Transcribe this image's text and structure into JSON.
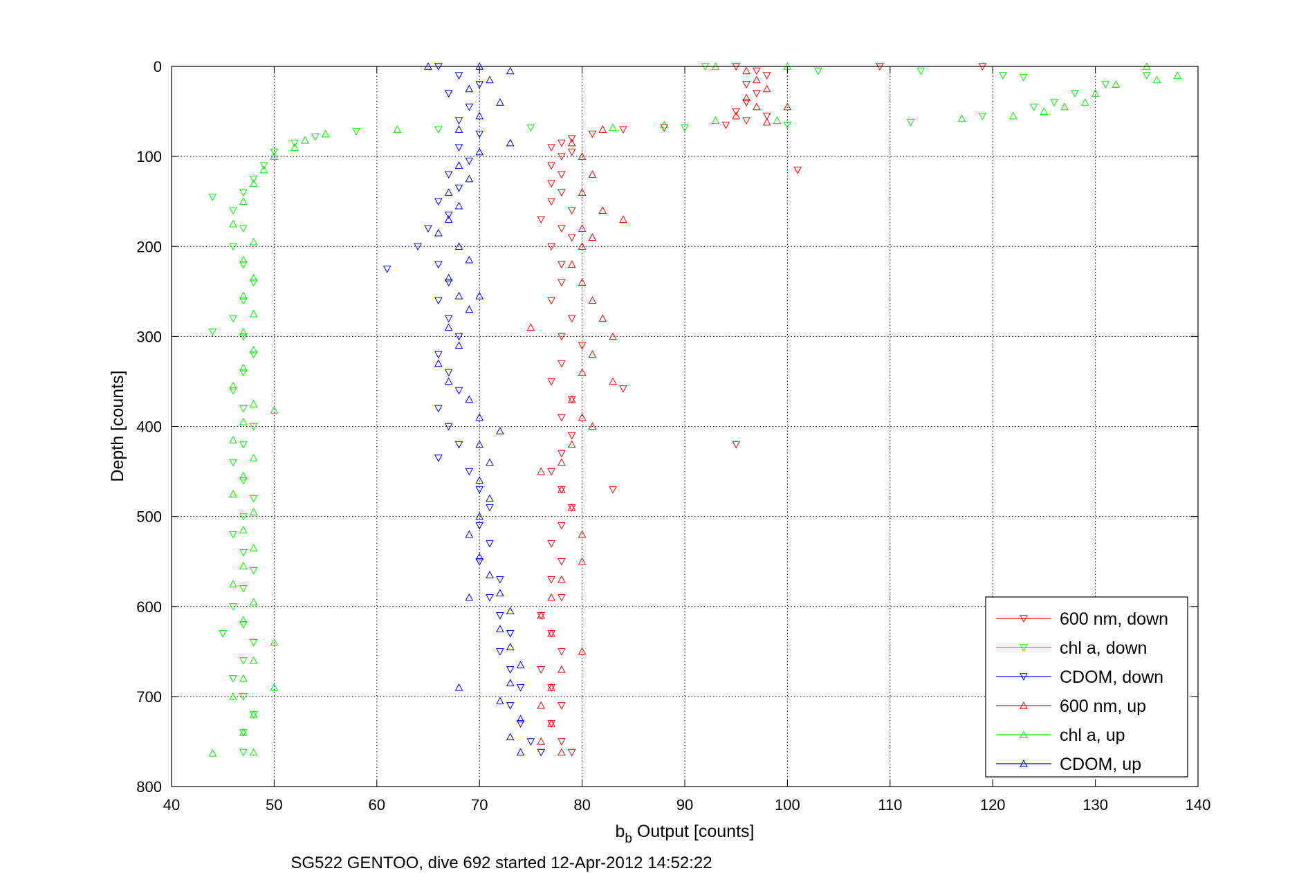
{
  "chart_data": {
    "type": "scatter",
    "xlabel_main": "b",
    "xlabel_sub": "b",
    "xlabel_rest": " Output [counts]",
    "ylabel": "Depth [counts]",
    "caption": "SG522 GENTOO, dive 692 started 12-Apr-2012 14:52:22",
    "xlim": [
      40,
      140
    ],
    "ylim": [
      0,
      800
    ],
    "y_reversed": true,
    "grid": true,
    "legend_position": "bottom-right",
    "xticks": [
      "40",
      "50",
      "60",
      "70",
      "80",
      "90",
      "100",
      "110",
      "120",
      "130",
      "140"
    ],
    "yticks": [
      "0",
      "100",
      "200",
      "300",
      "400",
      "500",
      "600",
      "700",
      "800"
    ],
    "series": [
      {
        "name": "600 nm, down",
        "color": "#ff0000",
        "marker": "triangle-down",
        "points": [
          [
            95,
            0
          ],
          [
            97,
            5
          ],
          [
            98,
            10
          ],
          [
            96,
            20
          ],
          [
            97,
            30
          ],
          [
            96,
            40
          ],
          [
            95,
            50
          ],
          [
            98,
            55
          ],
          [
            96,
            60
          ],
          [
            94,
            65
          ],
          [
            88,
            68
          ],
          [
            84,
            70
          ],
          [
            81,
            75
          ],
          [
            79,
            80
          ],
          [
            78,
            85
          ],
          [
            77,
            90
          ],
          [
            79,
            95
          ],
          [
            78,
            100
          ],
          [
            77,
            110
          ],
          [
            78,
            120
          ],
          [
            77,
            130
          ],
          [
            78,
            140
          ],
          [
            77,
            150
          ],
          [
            79,
            160
          ],
          [
            76,
            170
          ],
          [
            78,
            180
          ],
          [
            79,
            190
          ],
          [
            77,
            200
          ],
          [
            78,
            220
          ],
          [
            78,
            240
          ],
          [
            77,
            260
          ],
          [
            79,
            280
          ],
          [
            78,
            300
          ],
          [
            80,
            310
          ],
          [
            78,
            330
          ],
          [
            77,
            350
          ],
          [
            79,
            370
          ],
          [
            78,
            390
          ],
          [
            79,
            410
          ],
          [
            78,
            430
          ],
          [
            77,
            450
          ],
          [
            78,
            470
          ],
          [
            79,
            490
          ],
          [
            78,
            510
          ],
          [
            77,
            530
          ],
          [
            78,
            550
          ],
          [
            77,
            570
          ],
          [
            78,
            590
          ],
          [
            76,
            610
          ],
          [
            77,
            630
          ],
          [
            78,
            650
          ],
          [
            76,
            670
          ],
          [
            77,
            690
          ],
          [
            78,
            710
          ],
          [
            77,
            730
          ],
          [
            78,
            750
          ],
          [
            79,
            762
          ],
          [
            109,
            0
          ],
          [
            119,
            0
          ],
          [
            101,
            115
          ],
          [
            95,
            420
          ],
          [
            83,
            470
          ],
          [
            84,
            358
          ]
        ]
      },
      {
        "name": "chl a, down",
        "color": "#00ee00",
        "marker": "triangle-down",
        "points": [
          [
            92,
            0
          ],
          [
            103,
            5
          ],
          [
            113,
            5
          ],
          [
            121,
            10
          ],
          [
            123,
            12
          ],
          [
            135,
            10
          ],
          [
            131,
            20
          ],
          [
            128,
            30
          ],
          [
            126,
            40
          ],
          [
            124,
            45
          ],
          [
            119,
            55
          ],
          [
            112,
            62
          ],
          [
            100,
            65
          ],
          [
            90,
            68
          ],
          [
            75,
            68
          ],
          [
            66,
            70
          ],
          [
            58,
            72
          ],
          [
            54,
            78
          ],
          [
            52,
            85
          ],
          [
            50,
            95
          ],
          [
            49,
            110
          ],
          [
            48,
            125
          ],
          [
            47,
            140
          ],
          [
            46,
            160
          ],
          [
            47,
            180
          ],
          [
            46,
            200
          ],
          [
            47,
            220
          ],
          [
            48,
            240
          ],
          [
            47,
            260
          ],
          [
            46,
            280
          ],
          [
            47,
            300
          ],
          [
            48,
            320
          ],
          [
            47,
            340
          ],
          [
            46,
            360
          ],
          [
            47,
            380
          ],
          [
            48,
            400
          ],
          [
            47,
            420
          ],
          [
            46,
            440
          ],
          [
            47,
            460
          ],
          [
            48,
            480
          ],
          [
            47,
            500
          ],
          [
            46,
            520
          ],
          [
            47,
            540
          ],
          [
            48,
            560
          ],
          [
            47,
            580
          ],
          [
            46,
            600
          ],
          [
            47,
            620
          ],
          [
            48,
            640
          ],
          [
            47,
            660
          ],
          [
            46,
            680
          ],
          [
            47,
            700
          ],
          [
            48,
            720
          ],
          [
            47,
            740
          ],
          [
            47,
            762
          ],
          [
            44,
            145
          ],
          [
            44,
            295
          ],
          [
            45,
            630
          ]
        ]
      },
      {
        "name": "CDOM, down",
        "color": "#0000ff",
        "marker": "triangle-down",
        "points": [
          [
            66,
            0
          ],
          [
            68,
            10
          ],
          [
            70,
            20
          ],
          [
            67,
            30
          ],
          [
            69,
            45
          ],
          [
            68,
            60
          ],
          [
            70,
            75
          ],
          [
            68,
            90
          ],
          [
            69,
            105
          ],
          [
            67,
            120
          ],
          [
            68,
            135
          ],
          [
            66,
            150
          ],
          [
            67,
            165
          ],
          [
            65,
            180
          ],
          [
            64,
            200
          ],
          [
            66,
            220
          ],
          [
            61,
            225
          ],
          [
            67,
            240
          ],
          [
            66,
            260
          ],
          [
            67,
            280
          ],
          [
            68,
            300
          ],
          [
            66,
            320
          ],
          [
            67,
            340
          ],
          [
            68,
            360
          ],
          [
            66,
            380
          ],
          [
            67,
            400
          ],
          [
            68,
            420
          ],
          [
            66,
            435
          ],
          [
            69,
            450
          ],
          [
            70,
            470
          ],
          [
            71,
            490
          ],
          [
            70,
            510
          ],
          [
            71,
            530
          ],
          [
            70,
            550
          ],
          [
            72,
            570
          ],
          [
            71,
            590
          ],
          [
            72,
            610
          ],
          [
            73,
            630
          ],
          [
            72,
            650
          ],
          [
            73,
            670
          ],
          [
            74,
            690
          ],
          [
            73,
            710
          ],
          [
            74,
            730
          ],
          [
            75,
            750
          ],
          [
            76,
            762
          ]
        ]
      },
      {
        "name": "600 nm, up",
        "color": "#ff0000",
        "marker": "triangle-up",
        "points": [
          [
            96,
            5
          ],
          [
            97,
            15
          ],
          [
            98,
            25
          ],
          [
            96,
            35
          ],
          [
            97,
            45
          ],
          [
            100,
            45
          ],
          [
            95,
            55
          ],
          [
            98,
            62
          ],
          [
            82,
            70
          ],
          [
            79,
            85
          ],
          [
            80,
            100
          ],
          [
            81,
            120
          ],
          [
            80,
            140
          ],
          [
            82,
            160
          ],
          [
            84,
            170
          ],
          [
            80,
            180
          ],
          [
            81,
            190
          ],
          [
            80,
            200
          ],
          [
            79,
            220
          ],
          [
            80,
            240
          ],
          [
            81,
            260
          ],
          [
            82,
            280
          ],
          [
            83,
            300
          ],
          [
            81,
            320
          ],
          [
            80,
            340
          ],
          [
            83,
            350
          ],
          [
            79,
            370
          ],
          [
            80,
            390
          ],
          [
            81,
            400
          ],
          [
            79,
            420
          ],
          [
            78,
            440
          ],
          [
            76,
            450
          ],
          [
            78,
            470
          ],
          [
            79,
            490
          ],
          [
            80,
            520
          ],
          [
            80,
            550
          ],
          [
            78,
            570
          ],
          [
            77,
            590
          ],
          [
            76,
            610
          ],
          [
            77,
            630
          ],
          [
            80,
            650
          ],
          [
            78,
            670
          ],
          [
            77,
            690
          ],
          [
            76,
            710
          ],
          [
            77,
            730
          ],
          [
            76,
            750
          ],
          [
            78,
            762
          ],
          [
            75,
            290
          ]
        ]
      },
      {
        "name": "chl a, up",
        "color": "#00ee00",
        "marker": "triangle-up",
        "points": [
          [
            93,
            0
          ],
          [
            100,
            0
          ],
          [
            135,
            0
          ],
          [
            138,
            10
          ],
          [
            136,
            15
          ],
          [
            132,
            20
          ],
          [
            130,
            30
          ],
          [
            129,
            40
          ],
          [
            127,
            45
          ],
          [
            125,
            50
          ],
          [
            122,
            55
          ],
          [
            117,
            58
          ],
          [
            93,
            60
          ],
          [
            99,
            60
          ],
          [
            88,
            65
          ],
          [
            83,
            68
          ],
          [
            62,
            70
          ],
          [
            55,
            75
          ],
          [
            53,
            82
          ],
          [
            52,
            90
          ],
          [
            50,
            100
          ],
          [
            49,
            115
          ],
          [
            48,
            130
          ],
          [
            47,
            150
          ],
          [
            46,
            175
          ],
          [
            48,
            195
          ],
          [
            47,
            215
          ],
          [
            48,
            235
          ],
          [
            47,
            255
          ],
          [
            48,
            275
          ],
          [
            47,
            295
          ],
          [
            48,
            315
          ],
          [
            47,
            335
          ],
          [
            46,
            355
          ],
          [
            48,
            375
          ],
          [
            50,
            382
          ],
          [
            47,
            395
          ],
          [
            46,
            415
          ],
          [
            48,
            435
          ],
          [
            47,
            455
          ],
          [
            46,
            475
          ],
          [
            48,
            495
          ],
          [
            47,
            515
          ],
          [
            48,
            535
          ],
          [
            47,
            555
          ],
          [
            46,
            575
          ],
          [
            48,
            595
          ],
          [
            47,
            615
          ],
          [
            50,
            640
          ],
          [
            48,
            660
          ],
          [
            47,
            680
          ],
          [
            50,
            690
          ],
          [
            46,
            700
          ],
          [
            48,
            720
          ],
          [
            47,
            740
          ],
          [
            44,
            763
          ],
          [
            48,
            762
          ]
        ]
      },
      {
        "name": "CDOM, up",
        "color": "#0000ff",
        "marker": "triangle-up",
        "points": [
          [
            65,
            0
          ],
          [
            70,
            0
          ],
          [
            73,
            5
          ],
          [
            71,
            15
          ],
          [
            69,
            25
          ],
          [
            72,
            40
          ],
          [
            70,
            55
          ],
          [
            68,
            70
          ],
          [
            73,
            85
          ],
          [
            70,
            95
          ],
          [
            68,
            110
          ],
          [
            69,
            125
          ],
          [
            67,
            140
          ],
          [
            68,
            155
          ],
          [
            67,
            170
          ],
          [
            66,
            185
          ],
          [
            68,
            200
          ],
          [
            69,
            215
          ],
          [
            67,
            235
          ],
          [
            68,
            255
          ],
          [
            70,
            255
          ],
          [
            69,
            270
          ],
          [
            67,
            290
          ],
          [
            68,
            310
          ],
          [
            66,
            330
          ],
          [
            67,
            350
          ],
          [
            69,
            370
          ],
          [
            70,
            390
          ],
          [
            72,
            405
          ],
          [
            70,
            420
          ],
          [
            71,
            440
          ],
          [
            70,
            460
          ],
          [
            71,
            480
          ],
          [
            70,
            500
          ],
          [
            69,
            520
          ],
          [
            70,
            545
          ],
          [
            71,
            565
          ],
          [
            72,
            585
          ],
          [
            73,
            605
          ],
          [
            72,
            625
          ],
          [
            73,
            645
          ],
          [
            74,
            665
          ],
          [
            73,
            685
          ],
          [
            72,
            705
          ],
          [
            74,
            725
          ],
          [
            73,
            745
          ],
          [
            74,
            762
          ],
          [
            69,
            590
          ],
          [
            68,
            690
          ]
        ]
      }
    ]
  }
}
